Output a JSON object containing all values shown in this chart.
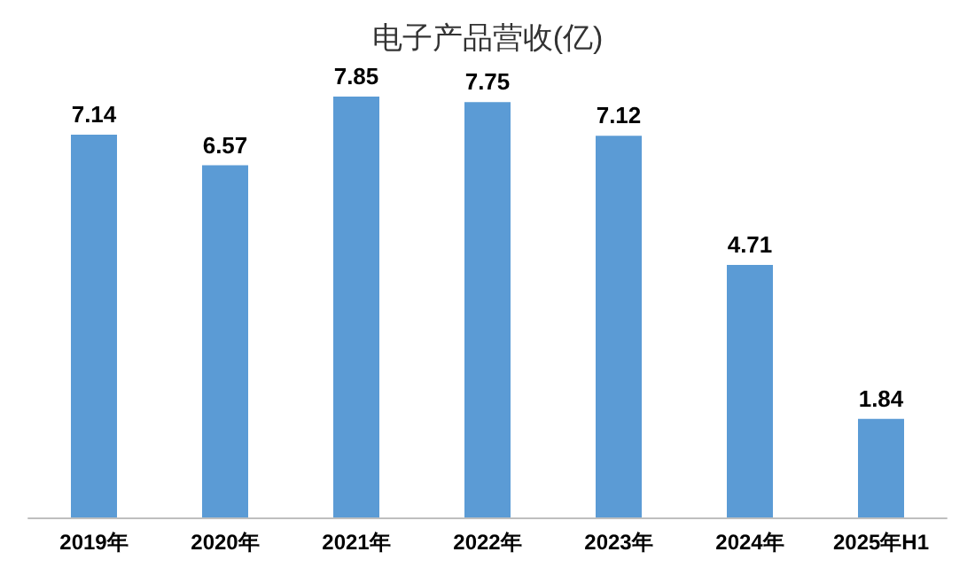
{
  "chart_data": {
    "type": "bar",
    "title": "电子产品营收(亿)",
    "categories": [
      "2019年",
      "2020年",
      "2021年",
      "2022年",
      "2023年",
      "2024年",
      "2025年H1"
    ],
    "values": [
      7.14,
      6.57,
      7.85,
      7.75,
      7.12,
      4.71,
      1.84
    ],
    "color": "#5b9bd5",
    "data_labels": true
  }
}
